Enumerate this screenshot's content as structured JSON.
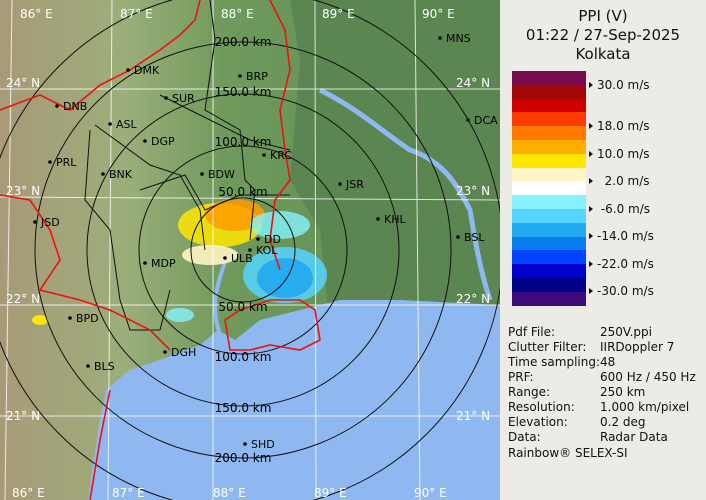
{
  "header": {
    "product": "PPI (V)",
    "datetime": "01:22 / 27-Sep-2025",
    "site": "Kolkata"
  },
  "legend": {
    "unit": "m/s",
    "colors": [
      "#7a0a4e",
      "#a00808",
      "#d00000",
      "#ff3a00",
      "#ff7a00",
      "#ffad00",
      "#ffe600",
      "#fff4c4",
      "#ffffff",
      "#86f2ff",
      "#55d4ff",
      "#22aaf0",
      "#0a7cf0",
      "#0044ff",
      "#0000c8",
      "#000088",
      "#3c0a7c"
    ],
    "ticks": [
      "30.0 m/s",
      "18.0 m/s",
      "10.0 m/s",
      "  2.0 m/s",
      " -6.0 m/s",
      "-14.0 m/s",
      "-22.0 m/s",
      "-30.0 m/s"
    ]
  },
  "info": [
    {
      "label": "Pdf File:",
      "value": "250V.ppi"
    },
    {
      "label": "Clutter Filter:",
      "value": "IIRDoppler 7"
    },
    {
      "label": "Time sampling:",
      "value": "48"
    },
    {
      "label": "PRF:",
      "value": "600 Hz / 450 Hz"
    },
    {
      "label": "Range:",
      "value": "250 km"
    },
    {
      "label": "Resolution:",
      "value": "1.000 km/pixel"
    },
    {
      "label": "Elevation:",
      "value": "0.2 deg"
    },
    {
      "label": "Data:",
      "value": "Radar Data"
    }
  ],
  "credit": "Rainbow® SELEX-SI",
  "map": {
    "lon_labels": [
      "86° E",
      "87° E",
      "88° E",
      "89° E",
      "90° E"
    ],
    "lat_labels": [
      "24° N",
      "23° N",
      "22° N",
      "21° N"
    ],
    "range_labels": [
      "50.0 km",
      "100.0 km",
      "150.0 km",
      "200.0 km"
    ],
    "cities": [
      "MNS",
      "DMK",
      "BRP",
      "DNB",
      "SUR",
      "ASL",
      "DCA",
      "DGP",
      "KRC",
      "PRL",
      "BNK",
      "BDW",
      "JSR",
      "JSD",
      "KHL",
      "DD",
      "KOL",
      "ULB",
      "BSL",
      "MDP",
      "BPD",
      "DGH",
      "BLS",
      "SHD"
    ],
    "colors": {
      "land": "#6f9a5c",
      "sea": "#90b8f0",
      "border": "#ee1111",
      "grid": "#ffffff"
    }
  }
}
